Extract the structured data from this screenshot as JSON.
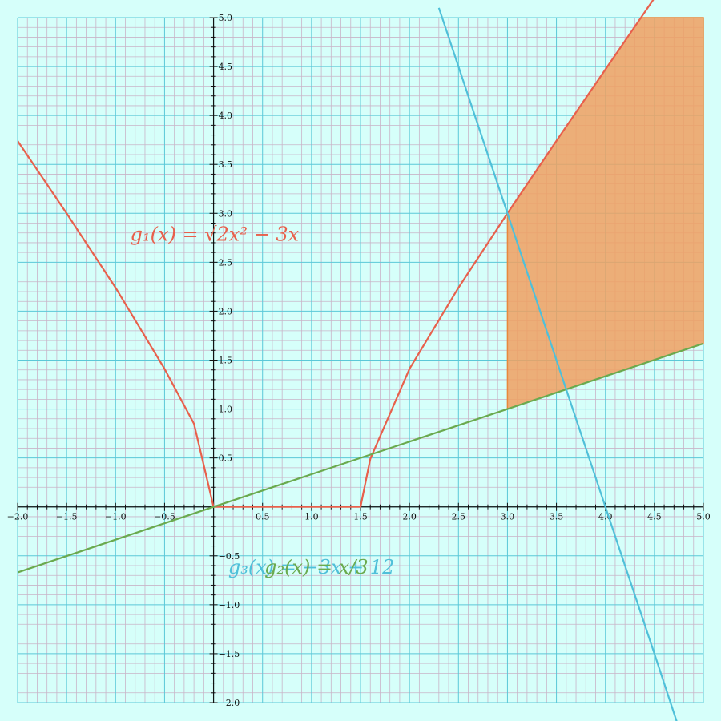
{
  "chart_data": {
    "type": "line",
    "title": "",
    "xlabel": "",
    "ylabel": "",
    "xlim": [
      -2.0,
      5.0
    ],
    "ylim": [
      -2.0,
      5.0
    ],
    "grid": true,
    "x_ticks": [
      "−2.0",
      "−1.5",
      "−1.0",
      "−0.5",
      "0.5",
      "1.0",
      "1.5",
      "2.0",
      "2.5",
      "3.0",
      "3.5",
      "4.0",
      "4.5",
      "5.0"
    ],
    "y_ticks": [
      "−2.0",
      "−1.5",
      "−1.0",
      "−0.5",
      "0.5",
      "1.0",
      "1.5",
      "2.0",
      "2.5",
      "3.0",
      "3.5",
      "4.0",
      "4.5",
      "5.0"
    ],
    "series": [
      {
        "name": "g₁(x) = √2x² − 3x",
        "color": "#e8604c",
        "points": [
          [
            -2.0,
            3.74
          ],
          [
            -1.5,
            3.0
          ],
          [
            -1.0,
            2.24
          ],
          [
            -0.5,
            1.41
          ],
          [
            -0.2,
            0.85
          ],
          [
            0.0,
            0.0
          ],
          [
            0.5,
            0.0
          ],
          [
            1.0,
            0.0
          ],
          [
            1.5,
            0.0
          ],
          [
            1.6,
            0.49
          ],
          [
            2.0,
            1.41
          ],
          [
            2.5,
            2.24
          ],
          [
            3.0,
            3.0
          ],
          [
            3.5,
            3.74
          ],
          [
            4.0,
            4.47
          ],
          [
            4.5,
            5.2
          ]
        ]
      },
      {
        "name": "g₂(x) = x/3",
        "color": "#6aaa4e",
        "points": [
          [
            -2.0,
            -0.67
          ],
          [
            0.0,
            0.0
          ],
          [
            1.5,
            0.5
          ],
          [
            3.0,
            1.0
          ],
          [
            5.0,
            1.67
          ]
        ]
      },
      {
        "name": "g₃(x) = −3x + 12",
        "color": "#4fc0d9",
        "points": [
          [
            2.3,
            5.1
          ],
          [
            3.0,
            3.0
          ],
          [
            3.6,
            1.2
          ],
          [
            4.0,
            0.0
          ],
          [
            4.5,
            -1.5
          ],
          [
            4.73,
            -2.2
          ]
        ]
      }
    ],
    "shaded_region": {
      "color": "#f0a060",
      "x_from": 3.0,
      "x_to": 5.0,
      "upper": "g₁",
      "lower": "g₂"
    },
    "labels": {
      "g1": "g₁(x) = √2x² − 3x",
      "g2": "g₂(x) = x/3",
      "g3": "g₃(x) = −3x + 12"
    }
  }
}
